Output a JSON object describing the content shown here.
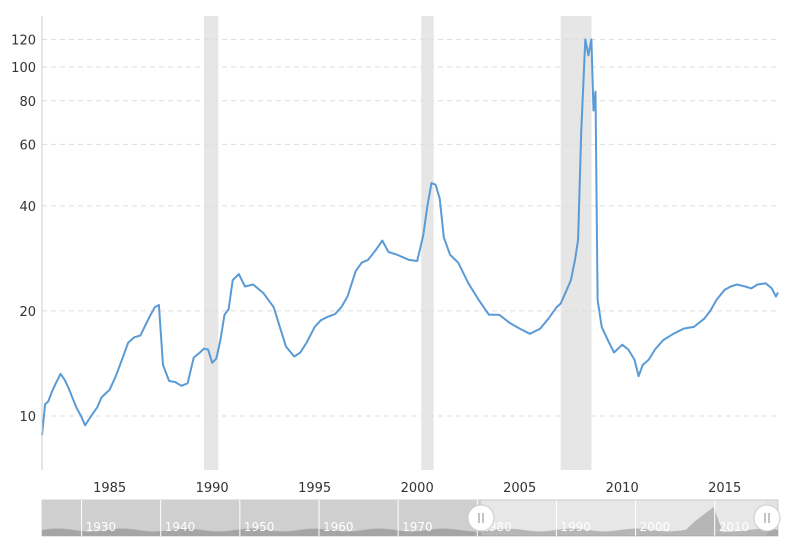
{
  "chart_data": {
    "type": "line",
    "title": "",
    "xlabel": "",
    "ylabel": "",
    "y_scale": "log",
    "xlim": [
      1981.7,
      2017.6
    ],
    "ylim": [
      7,
      140
    ],
    "yticks": [
      10,
      20,
      40,
      60,
      80,
      100,
      120
    ],
    "xticks": [
      1985,
      1990,
      1995,
      2000,
      2005,
      2010,
      2015
    ],
    "grid": "horizontal-dashed",
    "legend": "none",
    "colors": {
      "line": "#5b9bd5",
      "recession": "#e6e6e6",
      "grid": "#dddddd"
    },
    "recessions": [
      [
        1989.6,
        1990.3
      ],
      [
        2000.2,
        2000.8
      ],
      [
        2007.0,
        2008.5
      ]
    ],
    "series": [
      {
        "x": [
          1981.7,
          1981.85,
          1982.0,
          1982.2,
          1982.4,
          1982.6,
          1982.8,
          1983.0,
          1983.2,
          1983.4,
          1983.6,
          1983.8,
          1984.0,
          1984.2,
          1984.4,
          1984.6,
          1984.8,
          1985.0,
          1985.3,
          1985.6,
          1985.9,
          1986.2,
          1986.5,
          1986.8,
          1987.0,
          1987.2,
          1987.4,
          1987.6,
          1987.9,
          1988.2,
          1988.5,
          1988.8,
          1989.1,
          1989.4,
          1989.6,
          1989.8,
          1990.0,
          1990.2,
          1990.4,
          1990.6,
          1990.8,
          1991.0,
          1991.3,
          1991.6,
          1992.0,
          1992.5,
          1993.0,
          1993.3,
          1993.6,
          1994.0,
          1994.3,
          1994.6,
          1995.0,
          1995.3,
          1995.6,
          1996.0,
          1996.3,
          1996.6,
          1997.0,
          1997.3,
          1997.6,
          1998.0,
          1998.3,
          1998.6,
          1999.0,
          1999.3,
          1999.6,
          2000.0,
          2000.3,
          2000.5,
          2000.7,
          2000.9,
          2001.1,
          2001.3,
          2001.6,
          2002.0,
          2002.5,
          2003.0,
          2003.5,
          2004.0,
          2004.5,
          2005.0,
          2005.5,
          2006.0,
          2006.4,
          2006.8,
          2007.0,
          2007.3,
          2007.5,
          2007.7,
          2007.85,
          2008.0,
          2008.2,
          2008.35,
          2008.5,
          2008.6,
          2008.7,
          2008.8,
          2009.0,
          2009.3,
          2009.6,
          2010.0,
          2010.3,
          2010.6,
          2010.8,
          2011.0,
          2011.3,
          2011.6,
          2012.0,
          2012.5,
          2013.0,
          2013.5,
          2014.0,
          2014.3,
          2014.6,
          2015.0,
          2015.3,
          2015.6,
          2016.0,
          2016.3,
          2016.6,
          2017.0,
          2017.3,
          2017.5,
          2017.6
        ],
        "y": [
          8.8,
          10.8,
          11.0,
          11.8,
          12.5,
          13.2,
          12.7,
          12.0,
          11.2,
          10.5,
          10.0,
          9.4,
          9.8,
          10.2,
          10.6,
          11.3,
          11.6,
          11.9,
          13.0,
          14.5,
          16.2,
          16.8,
          17.0,
          18.5,
          19.5,
          20.5,
          20.8,
          14.0,
          12.6,
          12.5,
          12.2,
          12.4,
          14.7,
          15.2,
          15.6,
          15.5,
          14.2,
          14.6,
          16.5,
          19.5,
          20.2,
          24.5,
          25.5,
          23.5,
          23.8,
          22.5,
          20.5,
          18.0,
          15.8,
          14.8,
          15.2,
          16.2,
          18.0,
          18.8,
          19.2,
          19.6,
          20.5,
          22.0,
          26.0,
          27.5,
          28.0,
          30.0,
          31.8,
          29.5,
          29.0,
          28.5,
          28.0,
          27.8,
          33.0,
          40.0,
          46.5,
          46.0,
          42.0,
          32.5,
          29.0,
          27.5,
          24.0,
          21.5,
          19.5,
          19.5,
          18.5,
          17.8,
          17.2,
          17.8,
          19.0,
          20.5,
          21.0,
          23.0,
          24.5,
          28.0,
          32.0,
          65.0,
          120.0,
          108.0,
          120.0,
          75.0,
          85.0,
          21.5,
          18.0,
          16.5,
          15.2,
          16.0,
          15.5,
          14.5,
          13.0,
          14.0,
          14.5,
          15.5,
          16.5,
          17.2,
          17.8,
          18.0,
          19.0,
          20.0,
          21.5,
          23.0,
          23.5,
          23.8,
          23.5,
          23.2,
          23.8,
          24.0,
          23.2,
          22.0,
          22.6
        ]
      }
    ],
    "navigator": {
      "labels": [
        "1930",
        "1940",
        "1950",
        "1960",
        "1970",
        "1980",
        "1990",
        "2000",
        "2010"
      ]
    }
  }
}
